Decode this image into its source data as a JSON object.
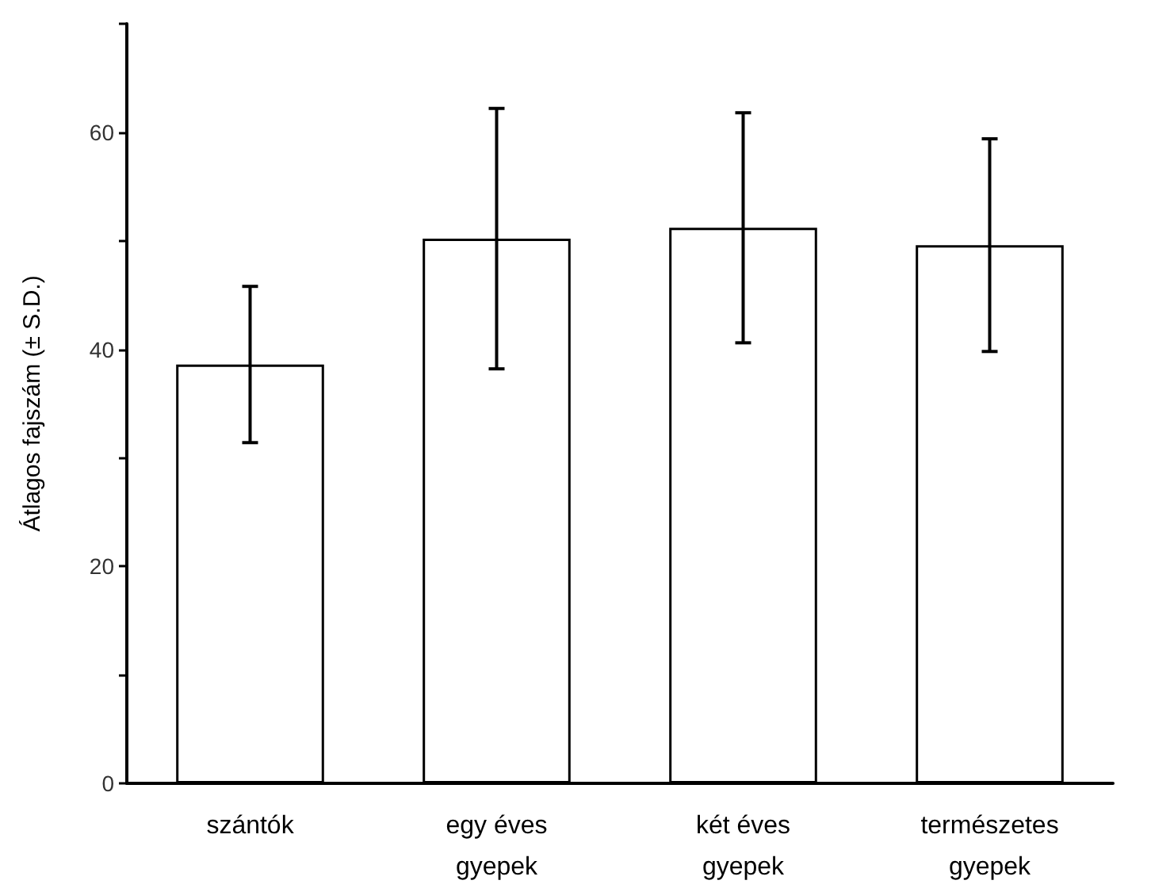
{
  "chart_data": {
    "type": "bar",
    "ylabel": "Átlagos fajszám (± S.D.)",
    "categories": [
      "szántók",
      "egy éves\ngyepek",
      "két éves\ngyepek",
      "természetes\ngyepek"
    ],
    "values": [
      38.6,
      50.2,
      51.2,
      49.6
    ],
    "errors": [
      7.2,
      12,
      10.6,
      9.8
    ],
    "color": "#ffffff",
    "ylim": [
      0,
      70
    ],
    "yticks": [
      0,
      {
        "value": 10,
        "label": null
      },
      20,
      {
        "value": 30,
        "label": null
      },
      40,
      {
        "value": 50,
        "label": null
      },
      60,
      {
        "value": 70,
        "label": null
      }
    ],
    "grid": false
  }
}
